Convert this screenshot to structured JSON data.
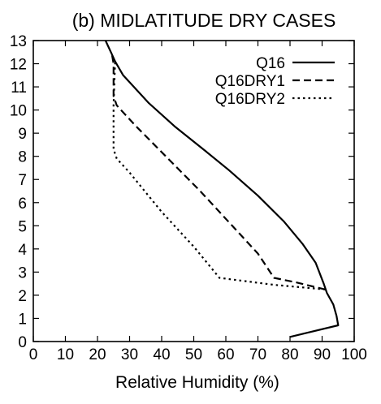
{
  "chart_data": {
    "type": "line",
    "title": "(b) MIDLATITUDE DRY CASES",
    "xlabel": "Relative Humidity (%)",
    "ylabel": "",
    "xlim": [
      0,
      100
    ],
    "ylim": [
      0,
      13
    ],
    "xticks": [
      0,
      10,
      20,
      30,
      40,
      50,
      60,
      70,
      80,
      90,
      100
    ],
    "yticks": [
      0,
      1,
      2,
      3,
      4,
      5,
      6,
      7,
      8,
      9,
      10,
      11,
      12,
      13
    ],
    "grid": false,
    "legend_position": "top-right",
    "series": [
      {
        "name": "Q16",
        "style": "solid",
        "color": "#000000",
        "points": [
          [
            80,
            0.2
          ],
          [
            95,
            0.7
          ],
          [
            94.5,
            1.1
          ],
          [
            93.5,
            1.6
          ],
          [
            91.5,
            2.1
          ],
          [
            90.5,
            2.5
          ],
          [
            88,
            3.4
          ],
          [
            84,
            4.2
          ],
          [
            78,
            5.2
          ],
          [
            70,
            6.3
          ],
          [
            61,
            7.4
          ],
          [
            53,
            8.3
          ],
          [
            44,
            9.3
          ],
          [
            36,
            10.3
          ],
          [
            28,
            11.5
          ],
          [
            25.5,
            12.1
          ],
          [
            24.5,
            12.4
          ],
          [
            22.5,
            13.0
          ]
        ]
      },
      {
        "name": "Q16DRY1",
        "style": "dashed",
        "color": "#000000",
        "points": [
          [
            91,
            2.25
          ],
          [
            82,
            2.55
          ],
          [
            75,
            2.75
          ],
          [
            70,
            3.8
          ],
          [
            62,
            5.0
          ],
          [
            52,
            6.5
          ],
          [
            42,
            7.9
          ],
          [
            32,
            9.3
          ],
          [
            26,
            10.2
          ],
          [
            25,
            10.6
          ],
          [
            25,
            12.0
          ],
          [
            24.5,
            12.4
          ]
        ]
      },
      {
        "name": "Q16DRY2",
        "style": "dotted",
        "color": "#000000",
        "points": [
          [
            91,
            2.25
          ],
          [
            75,
            2.45
          ],
          [
            58,
            2.75
          ],
          [
            50,
            4.1
          ],
          [
            40,
            5.6
          ],
          [
            30,
            7.3
          ],
          [
            26,
            7.9
          ],
          [
            25,
            8.3
          ],
          [
            25,
            10.2
          ],
          [
            25.5,
            12.1
          ]
        ]
      }
    ]
  }
}
